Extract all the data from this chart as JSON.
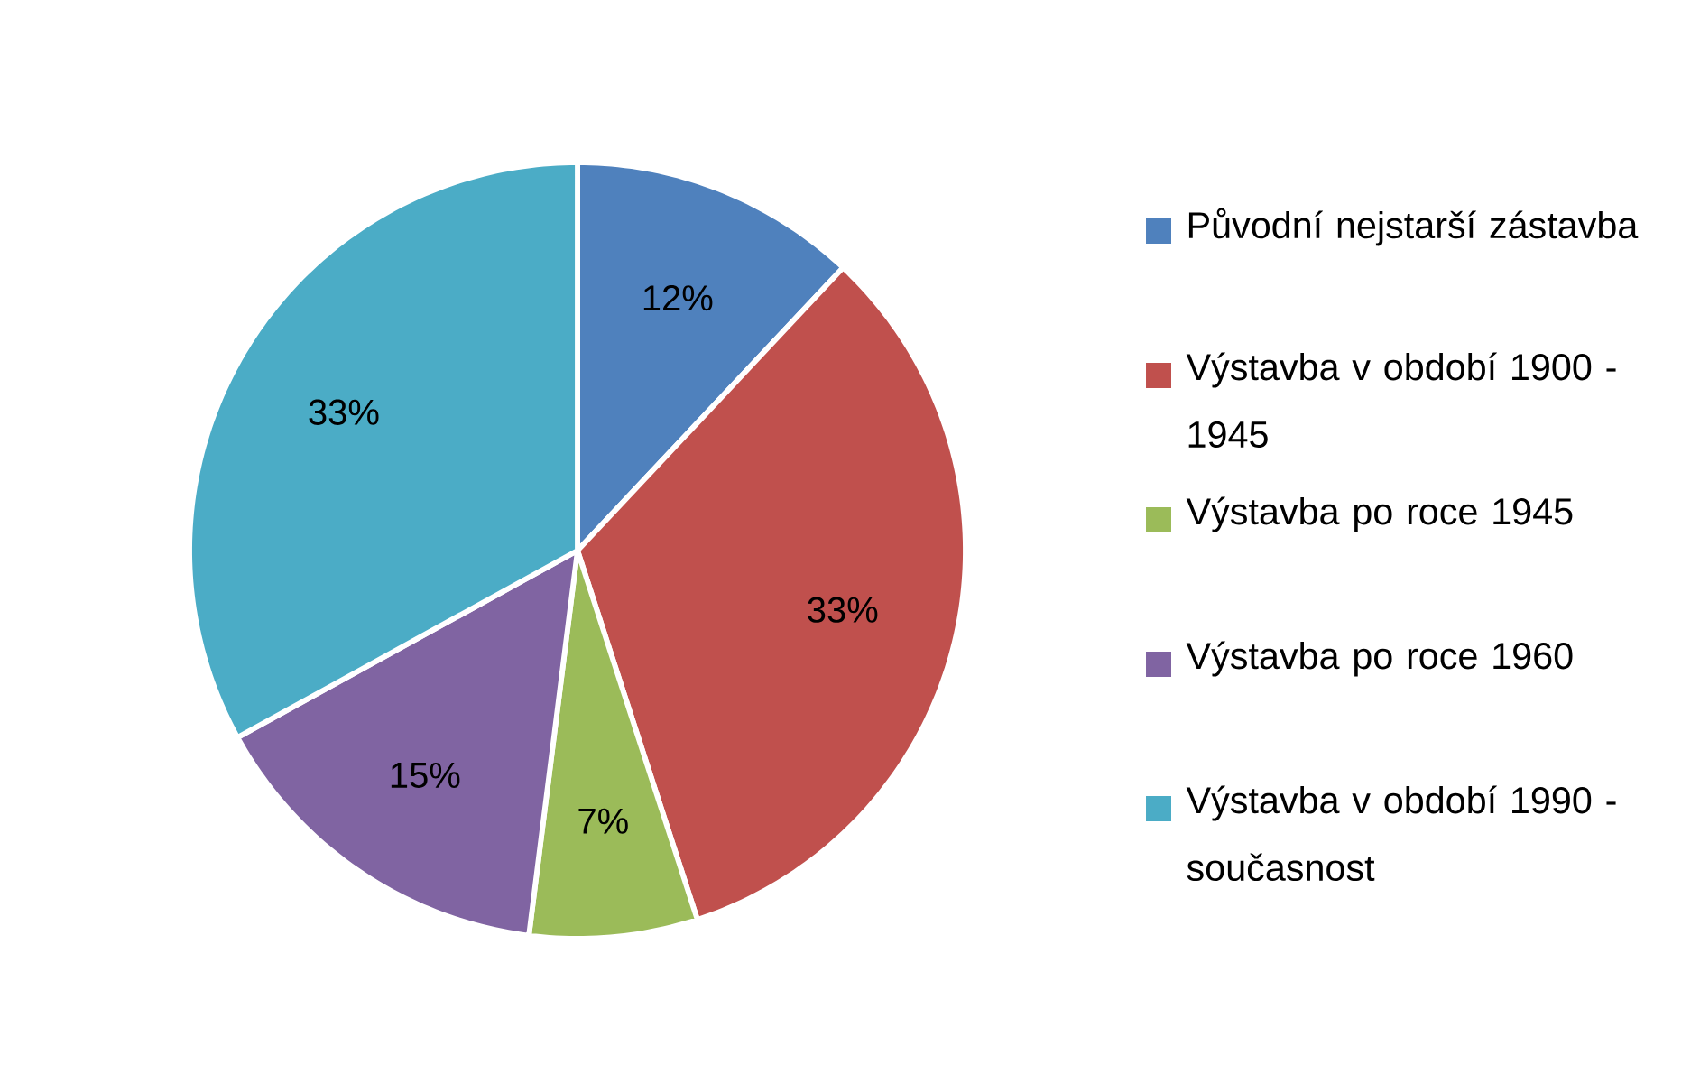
{
  "chart_data": {
    "type": "pie",
    "categories": [
      "Původní nejstarší zástavba",
      "Výstavba v období 1900 - 1945",
      "Výstavba po roce 1945",
      "Výstavba po roce 1960",
      "Výstavba v období 1990 - současnost"
    ],
    "values": [
      12,
      33,
      7,
      15,
      33
    ],
    "value_labels": [
      "12%",
      "33%",
      "7%",
      "15%",
      "33%"
    ],
    "colors": [
      "#4f81bd",
      "#c0504d",
      "#9bbb59",
      "#8064a2",
      "#4bacc6"
    ],
    "legend": "right"
  }
}
